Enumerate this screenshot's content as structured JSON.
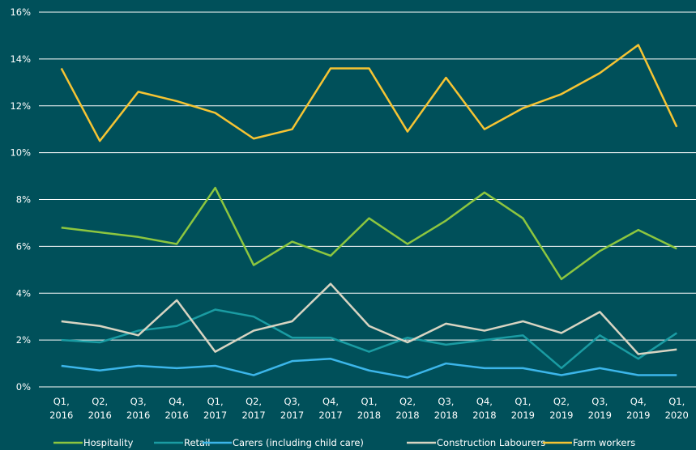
{
  "chart_data": {
    "type": "line",
    "categories": [
      "Q1, 2016",
      "Q2, 2016",
      "Q3, 2016",
      "Q4, 2016",
      "Q1, 2017",
      "Q2, 2017",
      "Q3, 2017",
      "Q4, 2017",
      "Q1, 2018",
      "Q2, 2018",
      "Q3, 2018",
      "Q4, 2018",
      "Q1, 2019",
      "Q2, 2019",
      "Q3, 2019",
      "Q4, 2019",
      "Q1, 2020"
    ],
    "series": [
      {
        "name": "Hospitality",
        "color": "#8dc63f",
        "values": [
          6.8,
          6.6,
          6.4,
          6.1,
          8.5,
          5.2,
          6.2,
          5.6,
          7.2,
          6.1,
          7.1,
          8.3,
          7.2,
          4.6,
          5.8,
          6.7,
          5.9
        ]
      },
      {
        "name": "Retail",
        "color": "#1a9ca3",
        "values": [
          2.0,
          1.9,
          2.4,
          2.6,
          3.3,
          3.0,
          2.1,
          2.1,
          1.5,
          2.1,
          1.8,
          2.0,
          2.2,
          0.8,
          2.2,
          1.2,
          2.3
        ]
      },
      {
        "name": "Carers (including child care)",
        "color": "#3cb6ea",
        "values": [
          0.9,
          0.7,
          0.9,
          0.8,
          0.9,
          0.5,
          1.1,
          1.2,
          0.7,
          0.4,
          1.0,
          0.8,
          0.8,
          0.5,
          0.8,
          0.5,
          0.5
        ]
      },
      {
        "name": "Construction Labourers",
        "color": "#d8d4c2",
        "values": [
          2.8,
          2.6,
          2.2,
          3.7,
          1.5,
          2.4,
          2.8,
          4.4,
          2.6,
          1.9,
          2.7,
          2.4,
          2.8,
          2.3,
          3.2,
          1.4,
          1.6
        ]
      },
      {
        "name": "Farm workers",
        "color": "#f6c433",
        "values": [
          13.6,
          10.5,
          12.6,
          12.2,
          11.7,
          10.6,
          11.0,
          13.6,
          13.6,
          10.9,
          13.2,
          11.0,
          11.9,
          12.5,
          13.4,
          14.6,
          11.1
        ]
      }
    ],
    "ylim": [
      0,
      16
    ],
    "yticks": [
      {
        "value": 0,
        "label": "0%"
      },
      {
        "value": 2,
        "label": "2%"
      },
      {
        "value": 4,
        "label": "4%"
      },
      {
        "value": 6,
        "label": "6%"
      },
      {
        "value": 8,
        "label": "8%"
      },
      {
        "value": 10,
        "label": "10%"
      },
      {
        "value": 12,
        "label": "12%"
      },
      {
        "value": 14,
        "label": "14%"
      },
      {
        "value": 16,
        "label": "16%"
      }
    ],
    "grid": true,
    "legend": "bottom"
  }
}
